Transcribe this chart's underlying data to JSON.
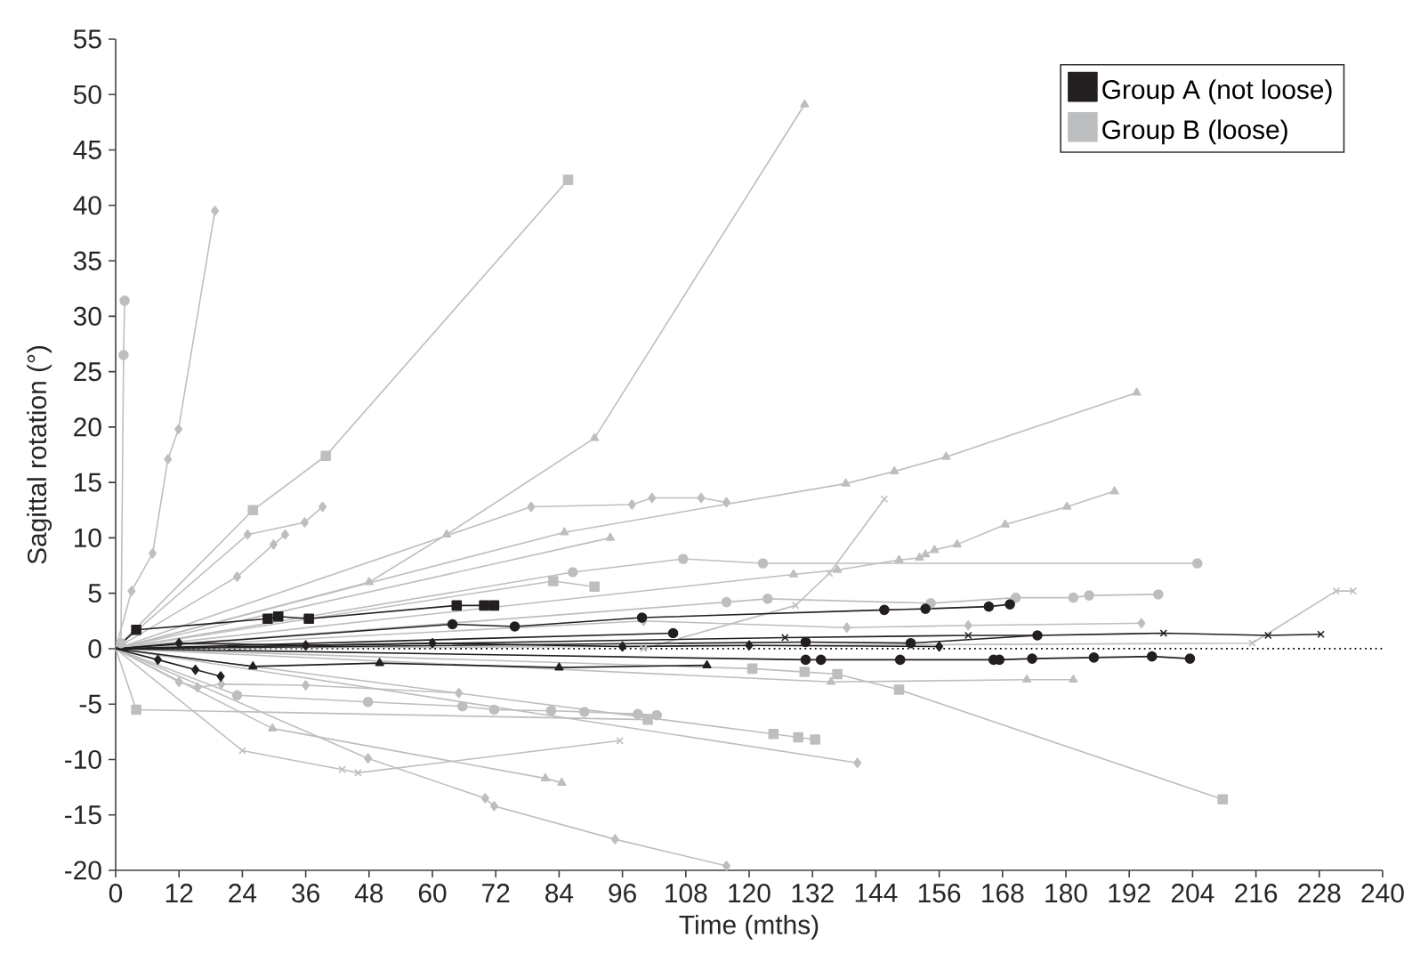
{
  "chart_data": {
    "type": "line",
    "xlabel": "Time (mths)",
    "ylabel": "Sagittal rotation (°)",
    "xlim": [
      0,
      240
    ],
    "xticks": [
      0,
      12,
      24,
      36,
      48,
      60,
      72,
      84,
      96,
      108,
      120,
      132,
      144,
      156,
      168,
      180,
      192,
      204,
      216,
      228,
      240
    ],
    "ylim": [
      -20,
      55
    ],
    "yticks": [
      -20,
      -15,
      -10,
      -5,
      0,
      5,
      10,
      15,
      20,
      25,
      30,
      35,
      40,
      45,
      50,
      55
    ],
    "legend": "top right",
    "ref_lines": [
      {
        "axis": "y",
        "value": 0,
        "color": "#000000",
        "line_style": "dotted"
      }
    ],
    "series": [
      {
        "name": "Group B (loose)",
        "color": "#bcbec0",
        "marker": "circle",
        "x": [
          1,
          1.5,
          1.7
        ],
        "values": [
          0.5,
          26.5,
          31.4
        ]
      },
      {
        "color": "#bcbec0",
        "marker": "diamond",
        "x": [
          0,
          3,
          7,
          9.9,
          11.9,
          18.8
        ],
        "values": [
          0,
          5.2,
          8.6,
          17.1,
          19.8,
          39.5
        ]
      },
      {
        "color": "#bcbec0",
        "marker": "square",
        "x": [
          0,
          26,
          39.8,
          85.7
        ],
        "values": [
          0,
          12.5,
          17.4,
          42.3
        ]
      },
      {
        "color": "#bcbec0",
        "marker": "triangle",
        "x": [
          0,
          48,
          62.7,
          90.7,
          130.5
        ],
        "values": [
          0,
          6,
          10.3,
          19.0,
          49.1
        ]
      },
      {
        "color": "#bcbec0",
        "marker": "triangle",
        "x": [
          0,
          85,
          138.3,
          147.5,
          157.3,
          193.4
        ],
        "values": [
          0,
          10.5,
          14.9,
          16.0,
          17.3,
          23.1
        ]
      },
      {
        "color": "#bcbec0",
        "marker": "triangle",
        "x": [
          0,
          128.4,
          136.7,
          148.4,
          152.3,
          153.4,
          155.1,
          159.4,
          168.5,
          180.2,
          189.2
        ],
        "values": [
          0,
          6.7,
          7.1,
          8.0,
          8.2,
          8.5,
          8.9,
          9.4,
          11.2,
          12.8,
          14.2
        ]
      },
      {
        "color": "#bcbec0",
        "marker": "diamond",
        "x": [
          0,
          78.7,
          97.8,
          101.6,
          110.9,
          115.7
        ],
        "values": [
          0,
          12.8,
          13.0,
          13.6,
          13.6,
          13.2
        ]
      },
      {
        "color": "#bcbec0",
        "marker": "cross",
        "x": [
          100,
          128.8,
          135.2,
          145.6
        ],
        "values": [
          0,
          3.9,
          6.8,
          13.5
        ]
      },
      {
        "color": "#bcbec0",
        "marker": "circle",
        "x": [
          0,
          86.6,
          107.5,
          122.6,
          204.9
        ],
        "values": [
          0,
          6.9,
          8.1,
          7.7,
          7.7
        ]
      },
      {
        "color": "#bcbec0",
        "marker": "circle",
        "x": [
          0,
          115.7,
          123.5,
          154.4,
          170.5,
          181.4,
          184.4,
          197.5
        ],
        "values": [
          0,
          4.2,
          4.5,
          4.1,
          4.6,
          4.6,
          4.8,
          4.9
        ]
      },
      {
        "color": "#bcbec0",
        "marker": "cross",
        "x": [
          0,
          215.3,
          231.2,
          234.4
        ],
        "values": [
          0,
          0.5,
          5.2,
          5.2
        ]
      },
      {
        "color": "#bcbec0",
        "marker": "square",
        "x": [
          0,
          120.6,
          130.5,
          136.7,
          148.4,
          209.7
        ],
        "values": [
          0,
          -1.8,
          -2.1,
          -2.3,
          -3.7,
          -13.6
        ]
      },
      {
        "color": "#bcbec0",
        "marker": "square",
        "x": [
          0,
          124.6,
          129.3,
          132.5
        ],
        "values": [
          0,
          -7.7,
          -8.0,
          -8.2
        ]
      },
      {
        "color": "#bcbec0",
        "marker": "diamond",
        "x": [
          0,
          140.5
        ],
        "values": [
          0,
          -10.3
        ]
      },
      {
        "color": "#bcbec0",
        "marker": "diamond",
        "x": [
          0,
          47.8,
          70,
          71.7,
          94.6,
          115.7
        ],
        "values": [
          0,
          -9.9,
          -13.5,
          -14.2,
          -17.2,
          -19.6
        ]
      },
      {
        "color": "#bcbec0",
        "marker": "triangle",
        "x": [
          0,
          29.7,
          81.4,
          84.5
        ],
        "values": [
          0,
          -7.2,
          -11.7,
          -12.1
        ]
      },
      {
        "color": "#bcbec0",
        "marker": "cross",
        "x": [
          0,
          24,
          42.9,
          45.9,
          95.5
        ],
        "values": [
          0,
          -9.2,
          -10.9,
          -11.2,
          -8.3
        ]
      },
      {
        "color": "#bcbec0",
        "marker": "circle",
        "x": [
          0,
          23,
          47.8,
          65.7,
          71.7,
          82.5,
          88.8,
          98.9,
          102.5
        ],
        "values": [
          0,
          -4.2,
          -4.8,
          -5.2,
          -5.5,
          -5.6,
          -5.7,
          -5.9,
          -6.0
        ]
      },
      {
        "color": "#bcbec0",
        "marker": "square",
        "x": [
          0,
          3.9,
          100.8
        ],
        "values": [
          0,
          -5.5,
          -6.4
        ]
      },
      {
        "color": "#bcbec0",
        "marker": "square",
        "x": [
          0,
          82.9,
          90.7
        ],
        "values": [
          0,
          6.1,
          5.6
        ]
      },
      {
        "color": "#bcbec0",
        "marker": "diamond",
        "x": [
          0,
          25,
          35.8,
          39.2
        ],
        "values": [
          0,
          10.3,
          11.4,
          12.8
        ]
      },
      {
        "color": "#bcbec0",
        "marker": "diamond",
        "x": [
          0,
          23,
          29.9,
          32.1
        ],
        "values": [
          0,
          6.5,
          9.4,
          10.3
        ]
      },
      {
        "color": "#bcbec0",
        "marker": "triangle",
        "x": [
          0,
          93.7
        ],
        "values": [
          0,
          10.0
        ]
      },
      {
        "color": "#bcbec0",
        "marker": "diamond",
        "x": [
          0,
          12,
          15.5,
          20,
          36,
          65
        ],
        "values": [
          0,
          -3,
          -3.5,
          -3.2,
          -3.3,
          -4
        ]
      },
      {
        "color": "#bcbec0",
        "marker": "triangle",
        "x": [
          0,
          135.5,
          172.6,
          181.4
        ],
        "values": [
          0,
          -3.0,
          -2.8,
          -2.8
        ]
      },
      {
        "color": "#bcbec0",
        "marker": "diamond",
        "x": [
          0,
          100,
          138.5,
          161.5,
          194.3
        ],
        "values": [
          0,
          2.5,
          1.9,
          2.1,
          2.3
        ]
      },
      {
        "name": "Group A (not loose)",
        "color": "#231f20",
        "marker": "square",
        "x": [
          0,
          3.9,
          28.8,
          30.8,
          36.6,
          64.6,
          69.8,
          71.7
        ],
        "values": [
          0,
          1.7,
          2.7,
          2.9,
          2.7,
          3.9,
          3.9,
          3.9
        ]
      },
      {
        "color": "#231f20",
        "marker": "circle",
        "x": [
          0,
          63.8,
          75.6,
          99.7,
          145.6,
          153.4,
          165.4,
          169.4
        ],
        "values": [
          0,
          2.2,
          2.0,
          2.8,
          3.5,
          3.6,
          3.8,
          4.0
        ]
      },
      {
        "color": "#231f20",
        "marker": "cross",
        "x": [
          0,
          126.8,
          161.5,
          174.6,
          198.5,
          218.3,
          228.3
        ],
        "values": [
          0,
          1.0,
          1.2,
          1.2,
          1.4,
          1.2,
          1.3
        ]
      },
      {
        "color": "#231f20",
        "marker": "circle",
        "x": [
          0,
          130.7,
          133.6,
          148.6,
          166.3,
          167.4,
          173.6,
          185.3,
          196.3,
          203.5
        ],
        "values": [
          0,
          -1.0,
          -1.0,
          -1.0,
          -1.0,
          -1.0,
          -0.9,
          -0.8,
          -0.7,
          -0.9
        ]
      },
      {
        "color": "#231f20",
        "marker": "circle",
        "x": [
          0,
          130.7,
          150.6,
          174.6
        ],
        "values": [
          0,
          0.6,
          0.5,
          1.2
        ]
      },
      {
        "color": "#231f20",
        "marker": "diamond",
        "x": [
          0,
          8,
          15.1,
          19.9
        ],
        "values": [
          0,
          -1,
          -1.9,
          -2.5
        ]
      },
      {
        "color": "#231f20",
        "marker": "circle",
        "x": [
          0,
          105.6
        ],
        "values": [
          0,
          1.4
        ]
      },
      {
        "color": "#231f20",
        "marker": "diamond",
        "x": [
          0,
          12,
          36,
          60,
          96,
          120,
          156
        ],
        "values": [
          0,
          0.5,
          0.3,
          0.5,
          0.2,
          0.3,
          0.2
        ]
      },
      {
        "color": "#231f20",
        "marker": "triangle",
        "x": [
          0,
          26,
          50,
          84,
          112
        ],
        "values": [
          0,
          -1.6,
          -1.3,
          -1.7,
          -1.5
        ]
      }
    ]
  }
}
